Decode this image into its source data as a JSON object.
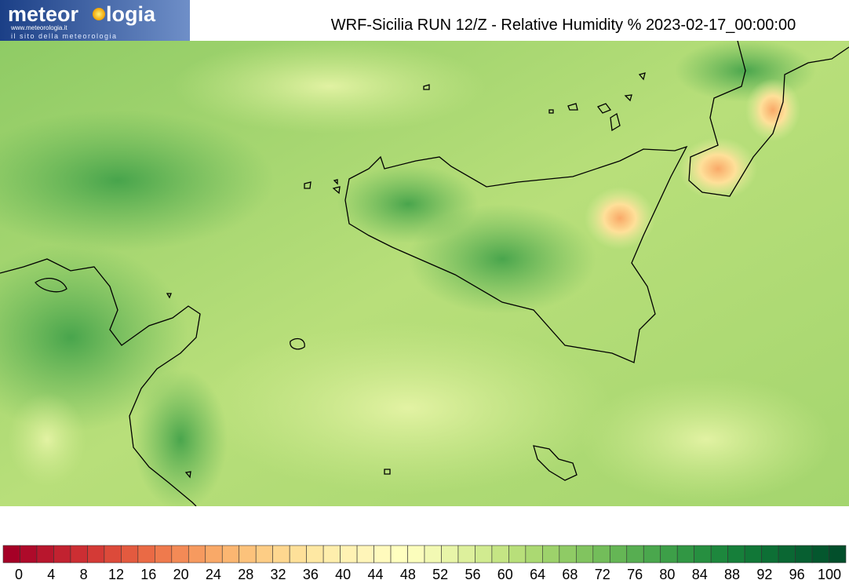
{
  "logo": {
    "brand_start": "meteor",
    "brand_end": "logia",
    "url": "www.meteorologia.it",
    "tagline": "il sito della meteorologia"
  },
  "title": "WRF-Sicilia RUN 12/Z - Relative Humidity % 2023-02-17_00:00:00",
  "colorbar": {
    "ticks": [
      0,
      4,
      8,
      12,
      16,
      20,
      24,
      28,
      32,
      36,
      40,
      44,
      48,
      52,
      56,
      60,
      64,
      68,
      72,
      76,
      80,
      84,
      88,
      92,
      96,
      100
    ],
    "colors": [
      "#a50026",
      "#ae0a2a",
      "#b8162d",
      "#c22230",
      "#cc2e33",
      "#d43a36",
      "#dc4a3a",
      "#e35a3f",
      "#ea6a45",
      "#ef7a4d",
      "#f38a56",
      "#f69a5f",
      "#f9a968",
      "#fbb671",
      "#fcc27b",
      "#fdcd85",
      "#fed78f",
      "#fee099",
      "#fee8a3",
      "#feeeac",
      "#fff2b3",
      "#fff5b9",
      "#fffabd",
      "#ffffbf",
      "#fbfdbc",
      "#f2f9b3",
      "#e8f5a8",
      "#ddf09c",
      "#d1eb90",
      "#c5e584",
      "#b8df7a",
      "#abd972",
      "#9dd26b",
      "#8fcb65",
      "#81c45f",
      "#73bd5a",
      "#65b655",
      "#57ae51",
      "#4aa74d",
      "#3d9f48",
      "#319744",
      "#268f40",
      "#1d873d",
      "#167f3a",
      "#117737",
      "#0d6f35",
      "#0a6733",
      "#075f31",
      "#04572e",
      "#024f2b"
    ]
  }
}
